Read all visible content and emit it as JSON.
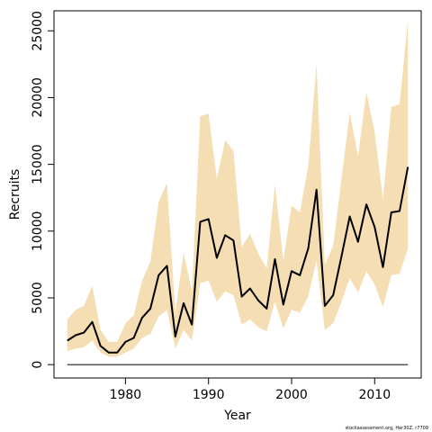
{
  "chart_data": {
    "type": "line",
    "title": "",
    "xlabel": "Year",
    "ylabel": "Recruits",
    "xlim": [
      1971.4,
      2015.6
    ],
    "ylim": [
      -1000,
      26500
    ],
    "x_ticks": [
      1980,
      1990,
      2000,
      2010
    ],
    "y_ticks": [
      0,
      5000,
      10000,
      15000,
      20000,
      25000
    ],
    "grid": false,
    "legend": "none",
    "colors": {
      "band": "#f5deb3",
      "line": "#000000",
      "zero_line": "#555555"
    },
    "x": [
      1973,
      1974,
      1975,
      1976,
      1977,
      1978,
      1979,
      1980,
      1981,
      1982,
      1983,
      1984,
      1985,
      1986,
      1987,
      1988,
      1989,
      1990,
      1991,
      1992,
      1993,
      1994,
      1995,
      1996,
      1997,
      1998,
      1999,
      2000,
      2001,
      2002,
      2003,
      2004,
      2005,
      2006,
      2007,
      2008,
      2009,
      2010,
      2011,
      2012,
      2013,
      2014
    ],
    "series": [
      {
        "values": [
          1800,
          2200,
          2400,
          3200,
          1400,
          900,
          900,
          1700,
          2000,
          3500,
          4200,
          6700,
          7400,
          2100,
          4600,
          3000,
          10700,
          10900,
          8000,
          9700,
          9300,
          5100,
          5700,
          4800,
          4200,
          7900,
          4500,
          7000,
          6700,
          8700,
          13100,
          4400,
          5200,
          8100,
          11100,
          9200,
          12000,
          10300,
          7300,
          11400,
          11500,
          14800
        ],
        "lower": [
          1000,
          1200,
          1300,
          1800,
          900,
          600,
          600,
          900,
          1200,
          2000,
          2300,
          3600,
          4100,
          1200,
          2600,
          1800,
          6100,
          6300,
          4700,
          5500,
          5200,
          3000,
          3400,
          2800,
          2500,
          4700,
          2700,
          4100,
          3900,
          5100,
          7800,
          2600,
          3100,
          4700,
          6500,
          5400,
          7000,
          6000,
          4300,
          6700,
          6800,
          8700
        ],
        "upper": [
          3400,
          4100,
          4400,
          5900,
          2600,
          1700,
          1700,
          3100,
          3700,
          6300,
          7700,
          12200,
          13600,
          3900,
          8400,
          5500,
          18600,
          18800,
          13900,
          16800,
          16000,
          8800,
          9800,
          8300,
          7200,
          13500,
          7800,
          11900,
          11400,
          14900,
          22500,
          7500,
          8900,
          13900,
          18900,
          15600,
          20400,
          17400,
          12400,
          19300,
          19500,
          25800
        ]
      },
      {
        "values": [
          0,
          0,
          0,
          0,
          0,
          0,
          0,
          0,
          0,
          0,
          0,
          0,
          0,
          0,
          0,
          0,
          0,
          0,
          0,
          0,
          0,
          0,
          0,
          0,
          0,
          0,
          0,
          0,
          0,
          0,
          0,
          0,
          0,
          0,
          0,
          0,
          0,
          0,
          0,
          0,
          0,
          0
        ]
      }
    ]
  },
  "footnote": "stockassessment.org, Her30Z, r7709"
}
